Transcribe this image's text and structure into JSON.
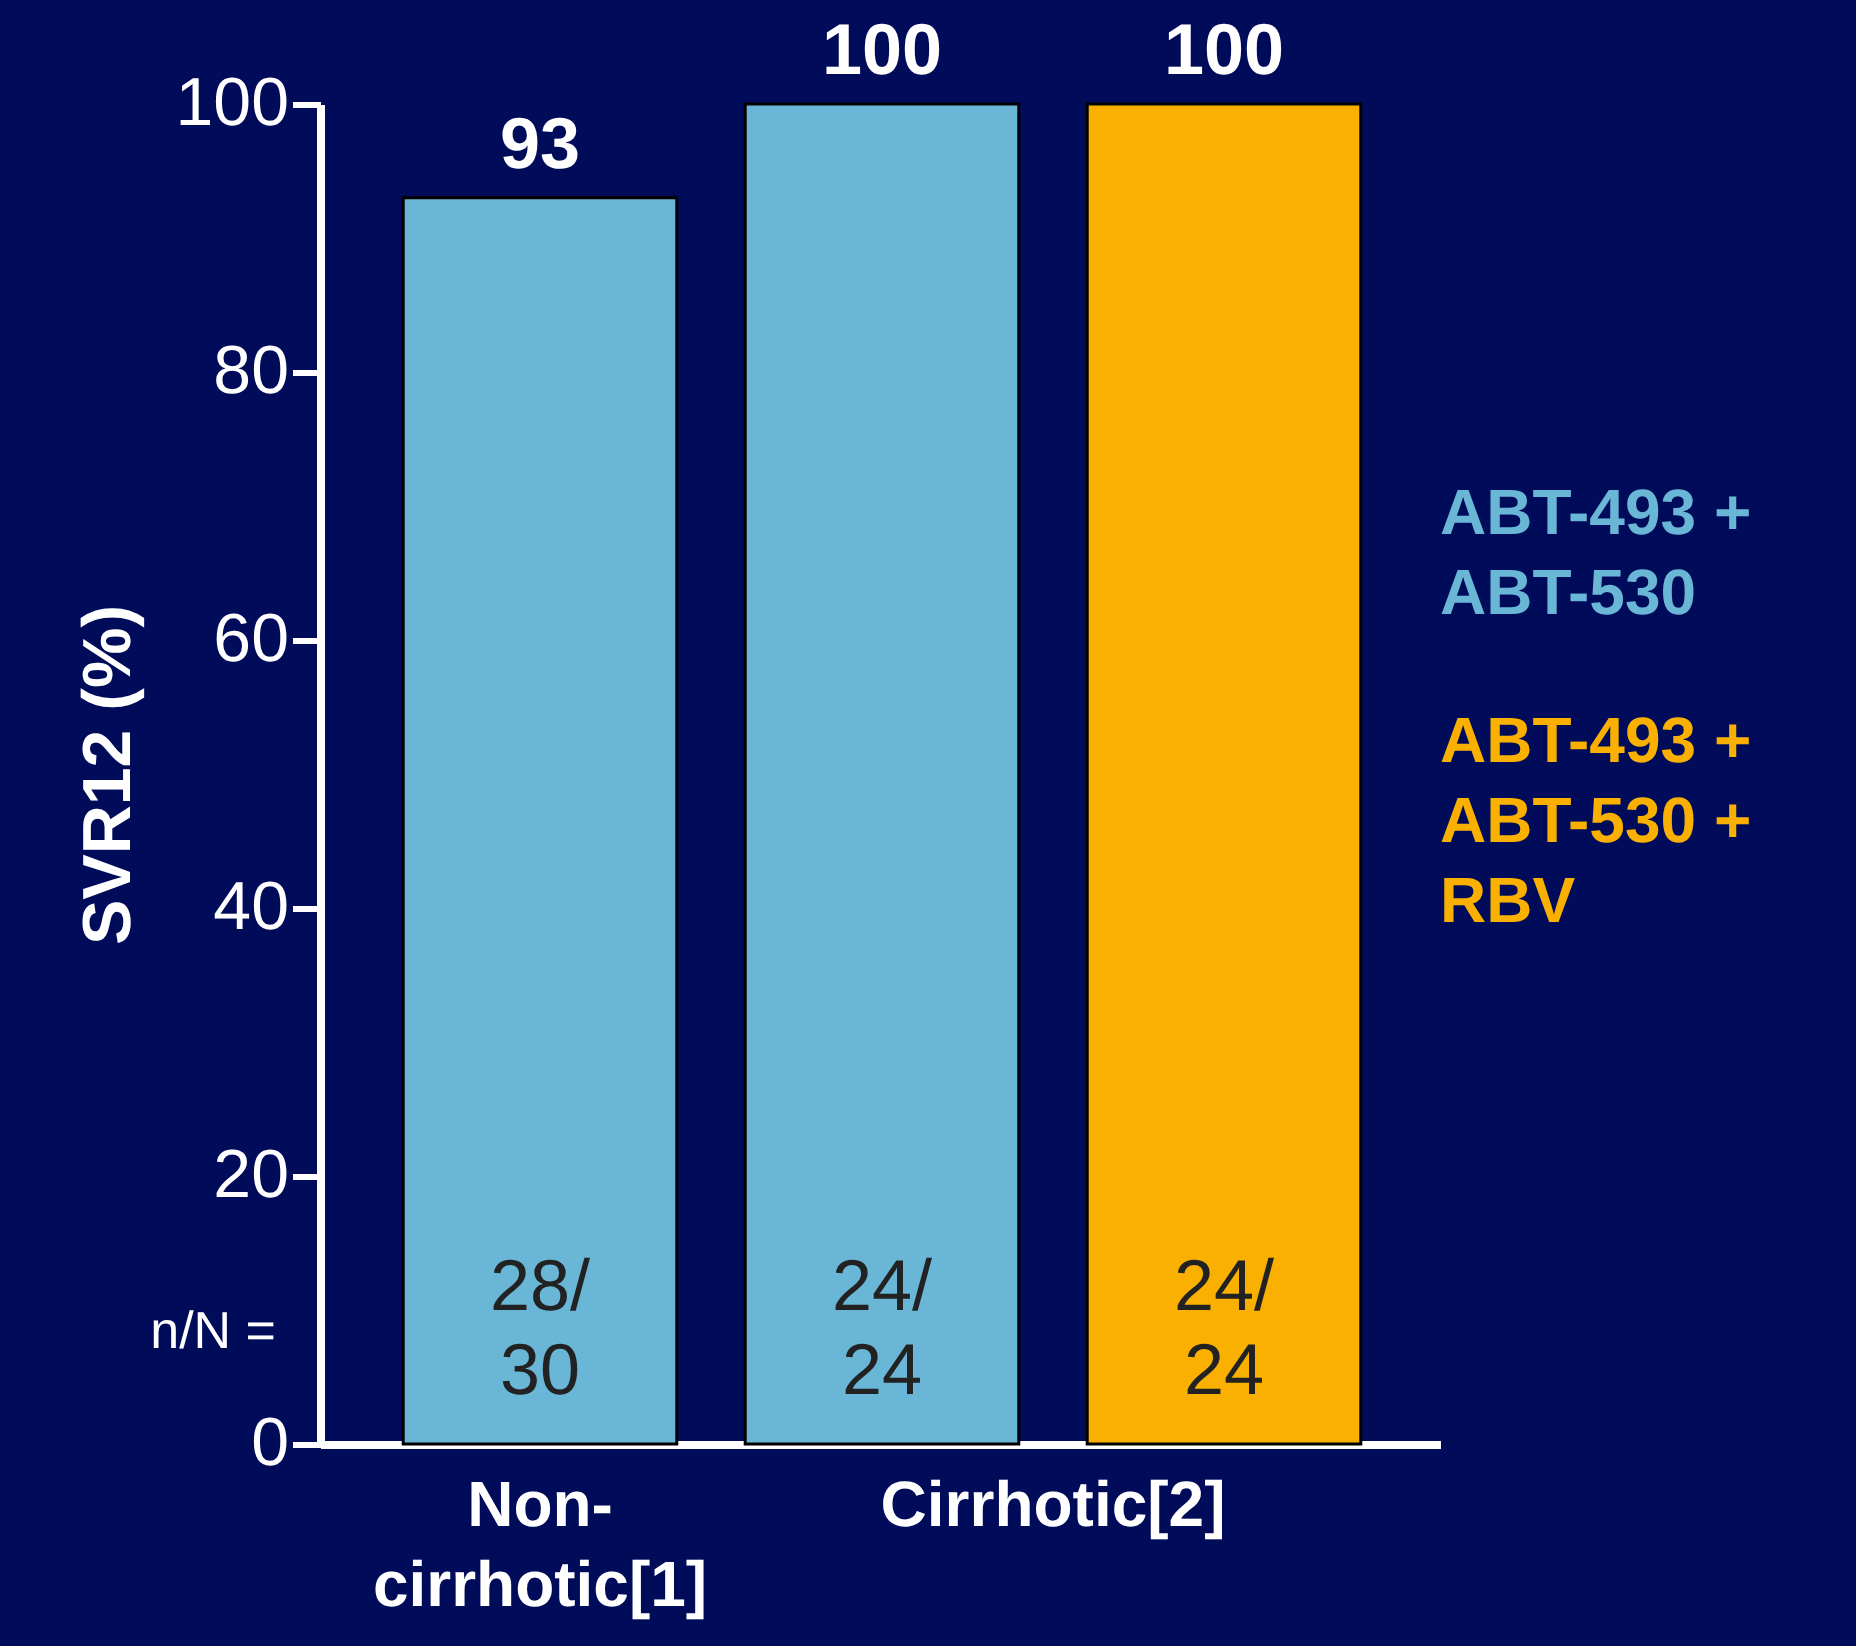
{
  "chart_data": {
    "type": "bar",
    "categories": [
      "Non-\ncirrhotic[1]",
      "Cirrhotic[2]"
    ],
    "series": [
      {
        "name": "ABT-493 + ABT-530",
        "color": "#69b6d6",
        "values": [
          93,
          100
        ]
      },
      {
        "name": "ABT-493 + ABT-530 + RBV",
        "color": "#f9b000",
        "values": [
          null,
          100
        ]
      }
    ],
    "ylabel": "SVR12 (%)",
    "ylim": [
      0,
      100
    ],
    "yticks": [
      0,
      20,
      40,
      60,
      80,
      100
    ],
    "data_labels": true,
    "grid": false,
    "annotations": [
      "n/N =",
      "28/\n30",
      "24/\n24",
      "24/\n24"
    ]
  }
}
